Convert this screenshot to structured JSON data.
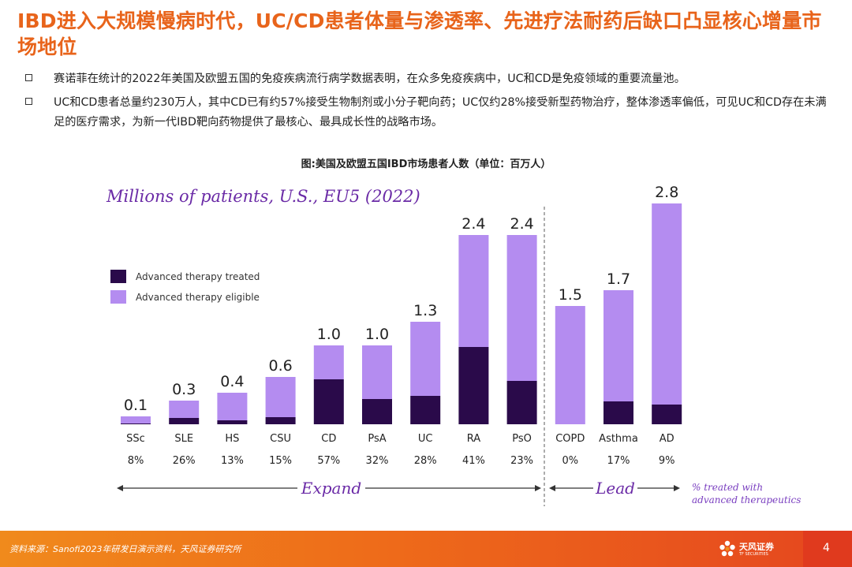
{
  "page": {
    "title": "IBD进入大规模慢病时代，UC/CD患者体量与渗透率、先进疗法耐药后缺口凸显核心增量市场地位",
    "bullets": [
      "赛诺菲在统计的2022年美国及欧盟五国的免疫疾病流行病学数据表明，在众多免疫疾病中，UC和CD是免疫领域的重要流量池。",
      "UC和CD患者总量约230万人，其中CD已有约57%接受生物制剂或小分子靶向药；UC仅约28%接受新型药物治疗，整体渗透率偏低，可见UC和CD存在未满足的医疗需求，为新一代IBD靶向药物提供了最核心、最具成长性的战略市场。"
    ],
    "figure_caption": "图:美国及欧盟五国IBD市场患者人数（单位：百万人）"
  },
  "chart_data": {
    "type": "bar",
    "title": "Millions of patients, U.S., EU5 (2022)",
    "categories": [
      "SSc",
      "SLE",
      "HS",
      "CSU",
      "CD",
      "PsA",
      "UC",
      "RA",
      "PsO",
      "COPD",
      "Asthma",
      "AD"
    ],
    "series": [
      {
        "name": "Advanced therapy treated",
        "color": "#2a0a4a",
        "values": [
          0.01,
          0.08,
          0.05,
          0.09,
          0.57,
          0.32,
          0.36,
          0.98,
          0.55,
          0.0,
          0.29,
          0.25
        ]
      },
      {
        "name": "Advanced therapy eligible",
        "color": "#b48cf0",
        "values": [
          0.09,
          0.22,
          0.35,
          0.51,
          0.43,
          0.68,
          0.94,
          1.42,
          1.85,
          1.5,
          1.41,
          2.55
        ]
      }
    ],
    "totals": [
      0.1,
      0.3,
      0.4,
      0.6,
      1.0,
      1.0,
      1.3,
      2.4,
      2.4,
      1.5,
      1.7,
      2.8
    ],
    "total_labels": [
      "0.1",
      "0.3",
      "0.4",
      "0.6",
      "1.0",
      "1.0",
      "1.3",
      "2.4",
      "2.4",
      "1.5",
      "1.7",
      "2.8"
    ],
    "pct_treated": [
      "8%",
      "26%",
      "13%",
      "15%",
      "57%",
      "32%",
      "28%",
      "41%",
      "23%",
      "0%",
      "17%",
      "9%"
    ],
    "groups": [
      {
        "label": "Expand",
        "from": 0,
        "to": 8
      },
      {
        "label": "Lead",
        "from": 9,
        "to": 11
      }
    ],
    "note_lines": [
      "% treated with",
      "advanced therapeutics"
    ],
    "ylim": [
      0,
      3.0
    ]
  },
  "footer": {
    "source": "资料来源：Sanofi2023年研发日演示资料，天风证券研究所",
    "logo_cn": "天风证券",
    "logo_en": "TF SECURITIES",
    "page_number": "4"
  },
  "colors": {
    "accent_orange": "#e8641b",
    "chart_purple_text": "#6a2aa6"
  }
}
